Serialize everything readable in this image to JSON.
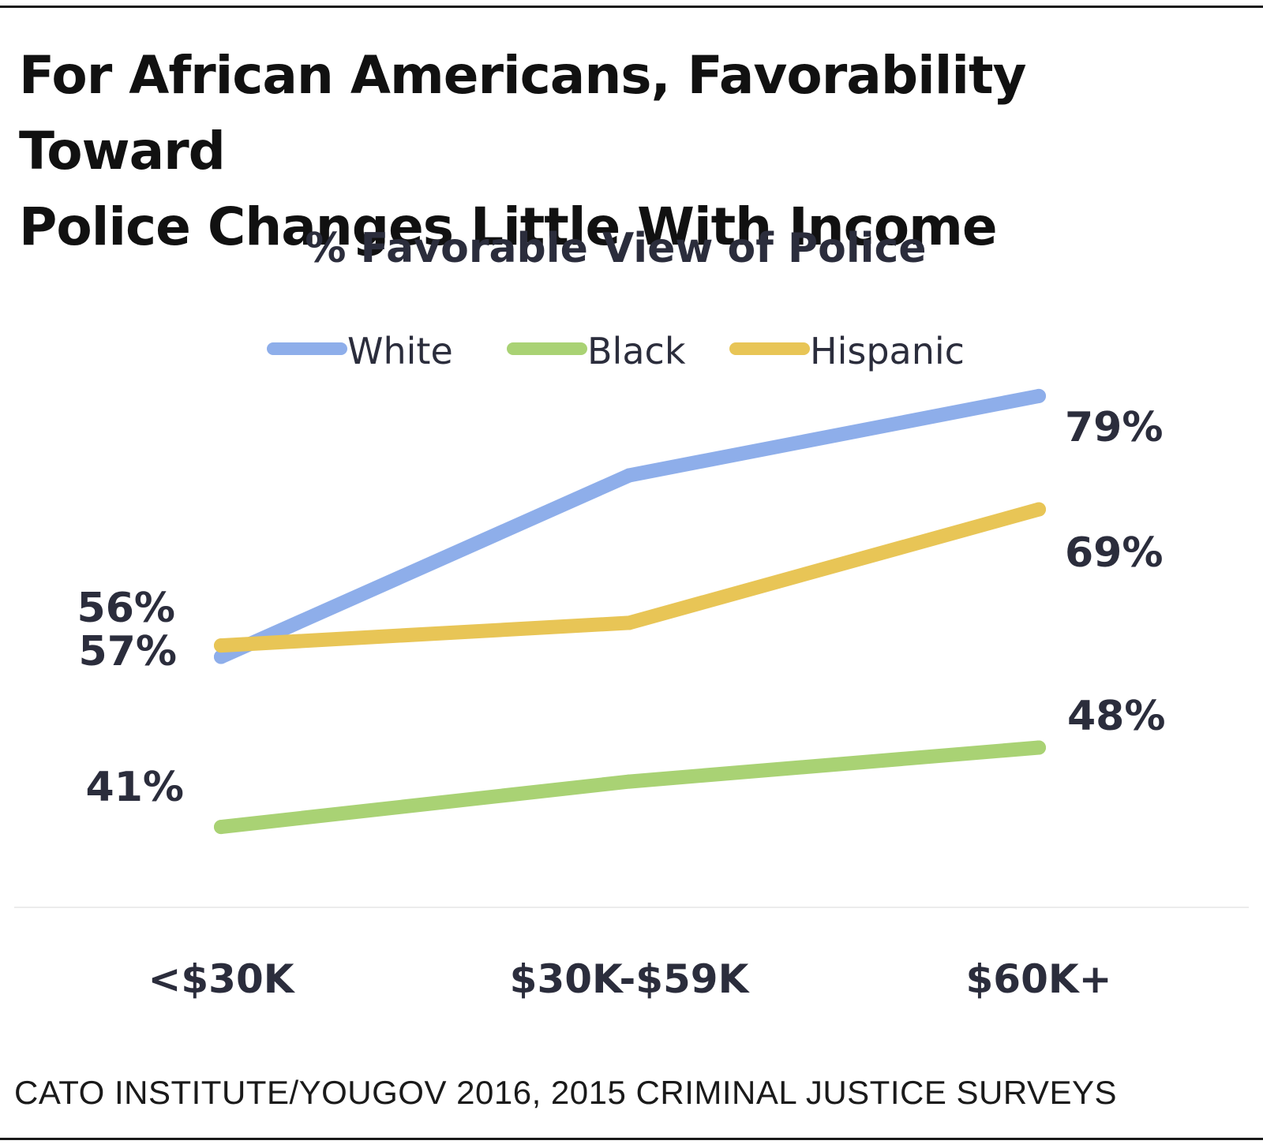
{
  "header": {
    "title_line1": "For African Americans, Favorability Toward",
    "title_line2": "Police Changes Little With Income"
  },
  "footer": {
    "source": "CATO INSTITUTE/YOUGOV 2016, 2015 CRIMINAL JUSTICE SURVEYS"
  },
  "chart_data": {
    "type": "line",
    "title": "% Favorable View of Police",
    "xlabel": "",
    "ylabel": "",
    "categories": [
      "<$30K",
      "$30K-$59K",
      "$60K+"
    ],
    "ylim": [
      20,
      100
    ],
    "grid": false,
    "legend": "top",
    "series": [
      {
        "name": "White",
        "color": "#8eaeea",
        "values": [
          56,
          72,
          79
        ],
        "labels": [
          "56%",
          "",
          "79%"
        ]
      },
      {
        "name": "Black",
        "color": "#a9d274",
        "values": [
          41,
          45,
          48
        ],
        "labels": [
          "41%",
          "",
          "48%"
        ]
      },
      {
        "name": "Hispanic",
        "color": "#e8c556",
        "values": [
          57,
          59,
          69
        ],
        "labels": [
          "57%",
          "",
          "69%"
        ]
      }
    ]
  }
}
